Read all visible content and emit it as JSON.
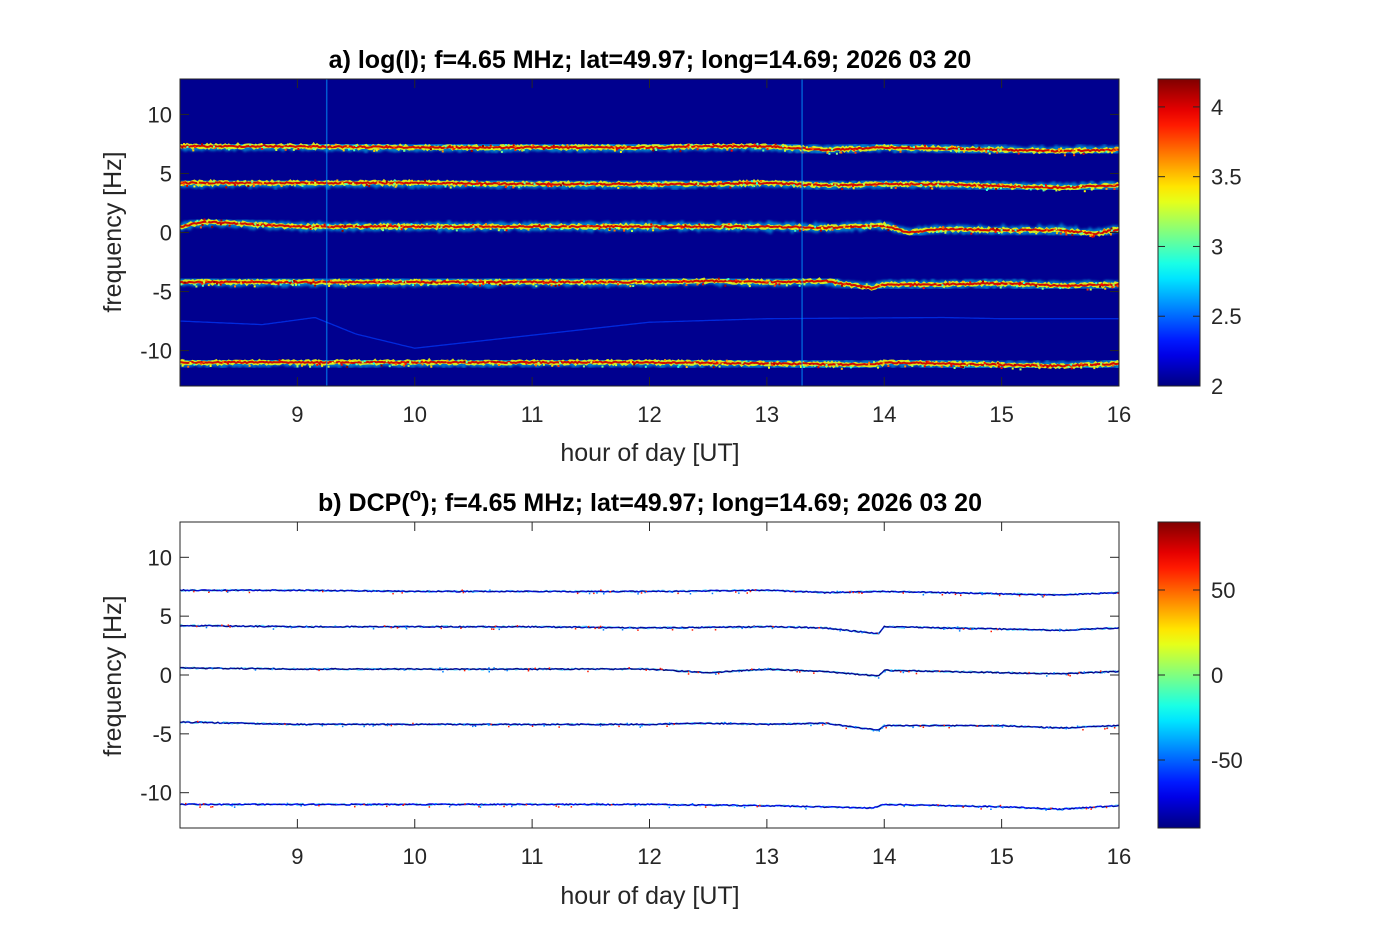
{
  "chart_data": [
    {
      "type": "heatmap",
      "title": "a) log(I); f=4.65 MHz;  lat=49.97; long=14.69; 2026 03 20",
      "xlabel": "hour of day [UT]",
      "ylabel": "frequency [Hz]",
      "xlim": [
        8,
        16
      ],
      "ylim": [
        -13,
        13
      ],
      "xticks": [
        "9",
        "10",
        "11",
        "12",
        "13",
        "14",
        "15",
        "16"
      ],
      "yticks": [
        "10",
        "5",
        "0",
        "-5",
        "-10"
      ],
      "colormap": "jet",
      "background_color": "#00008f",
      "colorbar": {
        "range": [
          2,
          4.2
        ],
        "ticks": [
          "4",
          "3.5",
          "3",
          "2.5",
          "2"
        ]
      },
      "series": [
        {
          "x": [
            8.0,
            9.0,
            10.0,
            11.0,
            12.0,
            12.5,
            13.0,
            13.5,
            14.0,
            14.5,
            15.0,
            15.5,
            16.0
          ],
          "y": [
            7.3,
            7.3,
            7.2,
            7.2,
            7.2,
            7.3,
            7.3,
            7.0,
            7.2,
            7.1,
            7.0,
            6.9,
            7.0
          ],
          "peak": 4.2
        },
        {
          "x": [
            8.0,
            9.0,
            10.0,
            11.0,
            12.0,
            12.5,
            13.0,
            13.5,
            14.0,
            14.5,
            15.0,
            15.5,
            16.0
          ],
          "y": [
            4.2,
            4.2,
            4.2,
            4.1,
            4.1,
            4.1,
            4.2,
            4.0,
            4.1,
            4.1,
            3.9,
            3.8,
            4.0
          ],
          "peak": 4.2
        },
        {
          "x": [
            8.0,
            8.2,
            9.0,
            10.0,
            11.0,
            12.0,
            12.5,
            13.0,
            13.5,
            14.0,
            14.2,
            14.5,
            15.0,
            15.5,
            15.8,
            16.0
          ],
          "y": [
            0.5,
            0.9,
            0.5,
            0.5,
            0.5,
            0.5,
            0.5,
            0.5,
            0.4,
            0.6,
            0.0,
            0.3,
            0.2,
            0.2,
            -0.1,
            0.3
          ],
          "peak": 4.2
        },
        {
          "x": [
            8.0,
            9.0,
            10.0,
            11.0,
            12.0,
            12.5,
            13.0,
            13.5,
            13.9,
            14.0,
            14.5,
            15.0,
            15.5,
            16.0
          ],
          "y": [
            -4.2,
            -4.2,
            -4.2,
            -4.2,
            -4.2,
            -4.1,
            -4.2,
            -4.1,
            -4.7,
            -4.4,
            -4.4,
            -4.3,
            -4.5,
            -4.4
          ],
          "peak": 4.2
        },
        {
          "x": [
            8.0,
            9.0,
            10.0,
            11.0,
            12.0,
            13.0,
            13.9,
            14.0,
            14.5,
            15.0,
            15.5,
            16.0
          ],
          "y": [
            -11.0,
            -11.0,
            -11.0,
            -11.0,
            -11.0,
            -11.1,
            -11.2,
            -11.0,
            -11.1,
            -11.2,
            -11.3,
            -11.1
          ],
          "peak": 4.2
        },
        {
          "x": [
            8.0,
            8.7,
            9.15,
            9.5,
            10.0,
            12.0,
            13.0,
            14.5,
            15.0,
            16.0
          ],
          "y": [
            -7.5,
            -7.8,
            -7.2,
            -8.6,
            -9.8,
            -7.6,
            -7.3,
            -7.2,
            -7.3,
            -7.3
          ],
          "peak": 2.4
        },
        {
          "x": [
            9.25,
            9.25
          ],
          "y": [
            -13,
            13
          ],
          "peak": 2.6
        },
        {
          "x": [
            13.3,
            13.3
          ],
          "y": [
            -13,
            13
          ],
          "peak": 2.6
        }
      ]
    },
    {
      "type": "heatmap",
      "title": "b) DCP(",
      "title_superscript": "o",
      "title_suffix": "); f=4.65 MHz;  lat=49.97; long=14.69; 2026 03 20",
      "xlabel": "hour of day [UT]",
      "ylabel": "frequency [Hz]",
      "xlim": [
        8,
        16
      ],
      "ylim": [
        -13,
        13
      ],
      "xticks": [
        "9",
        "10",
        "11",
        "12",
        "13",
        "14",
        "15",
        "16"
      ],
      "yticks": [
        "10",
        "5",
        "0",
        "-5",
        "-10"
      ],
      "colormap": "jet",
      "background_color": "#ffffff",
      "colorbar": {
        "range": [
          -90,
          90
        ],
        "ticks": [
          "50",
          "0",
          "-50"
        ]
      },
      "series": [
        {
          "x": [
            8.0,
            9.0,
            10.0,
            11.0,
            12.0,
            13.0,
            13.5,
            14.0,
            14.5,
            15.0,
            15.5,
            16.0
          ],
          "y": [
            7.2,
            7.2,
            7.1,
            7.1,
            7.1,
            7.2,
            7.0,
            7.1,
            7.0,
            6.9,
            6.8,
            7.0
          ],
          "dcp": -75
        },
        {
          "x": [
            8.0,
            9.0,
            10.0,
            11.0,
            12.0,
            13.0,
            13.5,
            13.95,
            14.0,
            14.5,
            15.0,
            15.5,
            16.0
          ],
          "y": [
            4.2,
            4.1,
            4.1,
            4.1,
            4.0,
            4.1,
            4.0,
            3.5,
            4.1,
            4.0,
            3.9,
            3.8,
            4.0
          ],
          "dcp": -80
        },
        {
          "x": [
            8.0,
            9.0,
            10.0,
            11.0,
            12.0,
            12.5,
            13.0,
            13.5,
            13.95,
            14.0,
            14.5,
            15.0,
            15.5,
            16.0
          ],
          "y": [
            0.6,
            0.5,
            0.5,
            0.5,
            0.5,
            0.2,
            0.5,
            0.3,
            -0.1,
            0.4,
            0.3,
            0.2,
            0.1,
            0.3
          ],
          "dcp": -85
        },
        {
          "x": [
            8.0,
            9.0,
            10.0,
            11.0,
            12.0,
            12.5,
            13.0,
            13.5,
            13.95,
            14.0,
            14.5,
            15.0,
            15.5,
            16.0
          ],
          "y": [
            -4.0,
            -4.2,
            -4.2,
            -4.2,
            -4.2,
            -4.1,
            -4.2,
            -4.1,
            -4.7,
            -4.3,
            -4.3,
            -4.3,
            -4.5,
            -4.3
          ],
          "dcp": -80
        },
        {
          "x": [
            8.0,
            9.0,
            10.0,
            11.0,
            12.0,
            13.0,
            13.9,
            14.0,
            14.5,
            15.0,
            15.5,
            16.0
          ],
          "y": [
            -11.0,
            -11.0,
            -11.0,
            -11.0,
            -11.0,
            -11.1,
            -11.3,
            -11.0,
            -11.1,
            -11.2,
            -11.4,
            -11.1
          ],
          "dcp": -70
        }
      ]
    }
  ]
}
